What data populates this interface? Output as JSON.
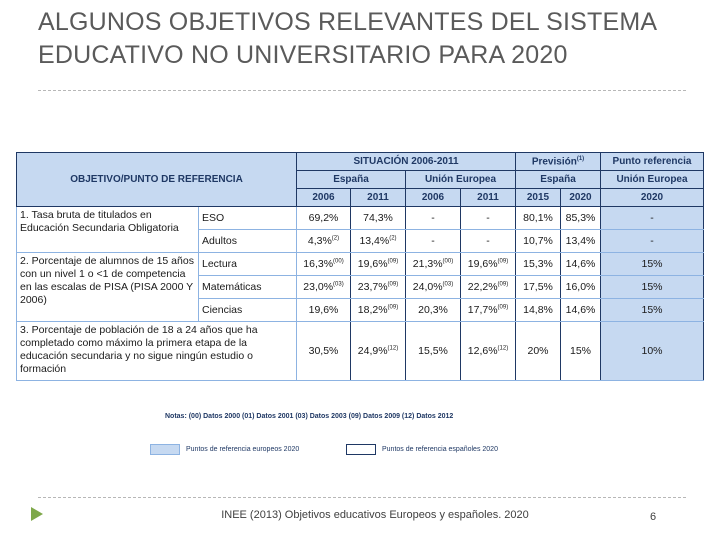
{
  "title_lines": [
    "ALGUNOS OBJETIVOS RELEVANTES DEL SISTEMA",
    "EDUCATIVO NO UNIVERSITARIO  PARA 2020"
  ],
  "table": {
    "header": {
      "objective": "OBJETIVO/PUNTO DE REFERENCIA",
      "situation": "SITUACIÓN 2006-2011",
      "forecast": "Previsión",
      "forecast_note": "(1)",
      "reference": "Punto referencia",
      "regions": [
        "España",
        "Unión Europea",
        "España",
        "Unión Europea"
      ],
      "years": [
        "2006",
        "2011",
        "2006",
        "2011",
        "2015",
        "2020",
        "2020"
      ]
    },
    "groups": [
      {
        "objective": "1. Tasa bruta de titulados en Educación Secundaria Obligatoria",
        "rows": [
          {
            "label": "ESO",
            "cells": [
              {
                "text": "69,2%"
              },
              {
                "text": "74,3%"
              },
              {
                "text": "-"
              },
              {
                "text": "-"
              },
              {
                "text": "80,1%"
              },
              {
                "text": "85,3%"
              },
              {
                "text": "-"
              }
            ]
          },
          {
            "label": "Adultos",
            "cells": [
              {
                "text": "4,3%",
                "sup": "(2)"
              },
              {
                "text": "13,4%",
                "sup": "(2)"
              },
              {
                "text": "-"
              },
              {
                "text": "-"
              },
              {
                "text": "10,7%"
              },
              {
                "text": "13,4%"
              },
              {
                "text": "-"
              }
            ]
          }
        ]
      },
      {
        "objective": "2. Porcentaje de alumnos de 15 años con un nivel 1 o <1 de competencia en las escalas de PISA (PISA 2000 Y 2006)",
        "rows": [
          {
            "label": "Lectura",
            "cells": [
              {
                "text": "16,3%",
                "sup": "(00)"
              },
              {
                "text": "19,6%",
                "sup": "(09)"
              },
              {
                "text": "21,3%",
                "sup": "(00)"
              },
              {
                "text": "19,6%",
                "sup": "(09)"
              },
              {
                "text": "15,3%"
              },
              {
                "text": "14,6%"
              },
              {
                "text": "15%"
              }
            ]
          },
          {
            "label": "Matemáticas",
            "cells": [
              {
                "text": "23,0%",
                "sup": "(03)"
              },
              {
                "text": "23,7%",
                "sup": "(09)"
              },
              {
                "text": "24,0%",
                "sup": "(03)"
              },
              {
                "text": "22,2%",
                "sup": "(09)"
              },
              {
                "text": "17,5%"
              },
              {
                "text": "16,0%"
              },
              {
                "text": "15%"
              }
            ]
          },
          {
            "label": "Ciencias",
            "cells": [
              {
                "text": "19,6%"
              },
              {
                "text": "18,2%",
                "sup": "(09)"
              },
              {
                "text": "20,3%"
              },
              {
                "text": "17,7%",
                "sup": "(09)"
              },
              {
                "text": "14,8%"
              },
              {
                "text": "14,6%"
              },
              {
                "text": "15%"
              }
            ]
          }
        ]
      },
      {
        "objective": "3. Porcentaje de población de 18 a 24 años que ha completado como máximo la primera etapa de la educación secundaria y no sigue ningún estudio o formación",
        "rows": [
          {
            "cells": [
              {
                "text": "30,5%"
              },
              {
                "text": "24,9%",
                "sup": "(12)"
              },
              {
                "text": "15,5%"
              },
              {
                "text": "12,6%",
                "sup": "(12)"
              },
              {
                "text": "20%"
              },
              {
                "text": "15%"
              },
              {
                "text": "10%"
              }
            ]
          }
        ]
      }
    ]
  },
  "notes": "Notas: (00) Datos 2000 (01) Datos 2001 (03) Datos 2003 (09) Datos 2009 (12) Datos 2012",
  "legend": [
    "Puntos de referencia europeos 2020",
    "Puntos de referencia españoles 2020"
  ],
  "footer": {
    "source": "INEE (2013) Objetivos educativos Europeos y españoles. 2020",
    "page": "6"
  }
}
